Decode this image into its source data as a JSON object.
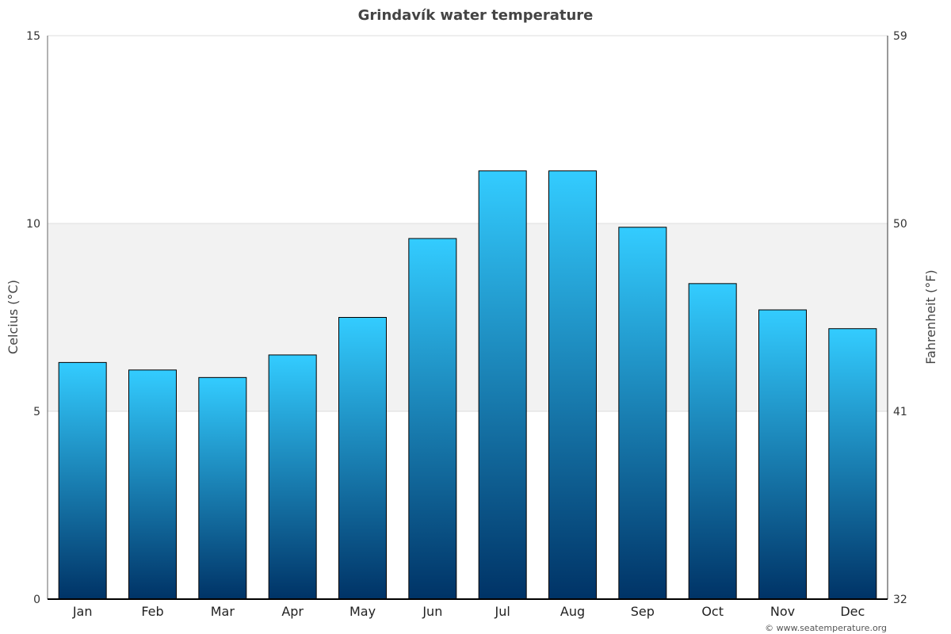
{
  "chart_data": {
    "type": "bar",
    "title": "Grindavík water temperature",
    "ylabel_left": "Celcius (°C)",
    "ylabel_right": "Fahrenheit (°F)",
    "categories": [
      "Jan",
      "Feb",
      "Mar",
      "Apr",
      "May",
      "Jun",
      "Jul",
      "Aug",
      "Sep",
      "Oct",
      "Nov",
      "Dec"
    ],
    "values": [
      6.3,
      6.1,
      5.9,
      6.5,
      7.5,
      9.6,
      11.4,
      11.4,
      9.9,
      8.4,
      7.7,
      7.2
    ],
    "ylim": [
      0,
      15
    ],
    "y_ticks_left": [
      "0",
      "5",
      "10",
      "15"
    ],
    "y_ticks_right": [
      "32",
      "41",
      "50",
      "59"
    ],
    "band": [
      5,
      10
    ],
    "grid": true,
    "colors": {
      "bar_top": "#33ccff",
      "bar_bottom": "#003366",
      "band": "#f2f2f2",
      "title": "#444444"
    }
  },
  "credit": "© www.seatemperature.org"
}
